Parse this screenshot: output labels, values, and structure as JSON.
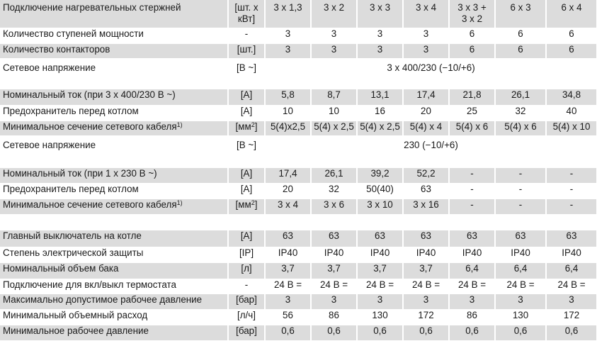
{
  "header": {
    "label": "Подключение нагревательных стержней",
    "unit_line1": "[шт. x",
    "unit_line2": "кВт]",
    "columns": [
      "3 x 1,3",
      "3 x 2",
      "3 x 3",
      "3 x 4",
      "3 x 3 +",
      "6 x 3",
      "6 x 4"
    ],
    "column5_line2": "3 x 2"
  },
  "rows": [
    {
      "label": "Количество ступеней мощности",
      "unit": "-",
      "values": [
        "3",
        "3",
        "3",
        "3",
        "6",
        "6",
        "6"
      ]
    },
    {
      "label": "Количество контакторов",
      "unit": "[шт.]",
      "values": [
        "3",
        "3",
        "3",
        "3",
        "6",
        "6",
        "6"
      ]
    },
    {
      "label": "Сетевое напряжение",
      "unit": "[В ~]",
      "span_value": "3 x 400/230 (−10/+6)"
    },
    {
      "label": "Номинальный ток (при 3 x 400/230 В ~)",
      "unit": "[A]",
      "values": [
        "5,8",
        "8,7",
        "13,1",
        "17,4",
        "21,8",
        "26,1",
        "34,8"
      ]
    },
    {
      "label": "Предохранитель перед котлом",
      "unit": "[A]",
      "values": [
        "10",
        "10",
        "16",
        "20",
        "25",
        "32",
        "40"
      ]
    },
    {
      "label": "Минимальное сечение сетевого кабеля",
      "sup": "1)",
      "unit": "[мм",
      "unit_sup": "2",
      "unit_end": "]",
      "values": [
        "5(4)x2,5",
        "5(4) x 2,5",
        "5(4) x 2,5",
        "5(4) x 4",
        "5(4) x 6",
        "5(4) x 6",
        "5(4) x 10"
      ]
    },
    {
      "label": "Сетевое напряжение",
      "unit": "[В ~]",
      "span_value": "230 (−10/+6)"
    },
    {
      "label": "Номинальный ток (при 1 x 230 В ~)",
      "unit": "[A]",
      "values": [
        "17,4",
        "26,1",
        "39,2",
        "52,2",
        "-",
        "-",
        "-"
      ]
    },
    {
      "label": "Предохранитель перед котлом",
      "unit": "[A]",
      "values": [
        "20",
        "32",
        "50(40)",
        "63",
        "-",
        "-",
        "-"
      ]
    },
    {
      "label": "Минимальное сечение сетевого кабеля",
      "sup": "1)",
      "unit": "[мм",
      "unit_sup": "2",
      "unit_end": "]",
      "values": [
        "3 x 4",
        "3 x 6",
        "3 x 10",
        "3 x 16",
        "-",
        "-",
        "-"
      ]
    },
    {
      "label": "Главный выключатель на котле",
      "unit": "[A]",
      "values": [
        "63",
        "63",
        "63",
        "63",
        "63",
        "63",
        "63"
      ]
    },
    {
      "label": "Степень электрической защиты",
      "unit": "[IP]",
      "values": [
        "IP40",
        "IP40",
        "IP40",
        "IP40",
        "IP40",
        "IP40",
        "IP40"
      ]
    },
    {
      "label": "Номинальный объем бака",
      "unit": "[л]",
      "values": [
        "3,7",
        "3,7",
        "3,7",
        "3,7",
        "6,4",
        "6,4",
        "6,4"
      ]
    },
    {
      "label": "Подключение для вкл/выкл термостата",
      "unit": "-",
      "values": [
        "24 B =",
        "24 B =",
        "24 B =",
        "24 B =",
        "24 B =",
        "24 B =",
        "24 B ="
      ]
    },
    {
      "label": "Максимально допустимое рабочее давление",
      "unit": "[бар]",
      "values": [
        "3",
        "3",
        "3",
        "3",
        "3",
        "3",
        "3"
      ]
    },
    {
      "label": "Минимальный объемный расход",
      "unit": "[л/ч]",
      "values": [
        "56",
        "86",
        "130",
        "172",
        "86",
        "130",
        "172"
      ]
    },
    {
      "label": "Минимальное рабочее давление",
      "unit": "[бар]",
      "values": [
        "0,6",
        "0,6",
        "0,6",
        "0,6",
        "0,6",
        "0,6",
        "0,6"
      ]
    }
  ]
}
